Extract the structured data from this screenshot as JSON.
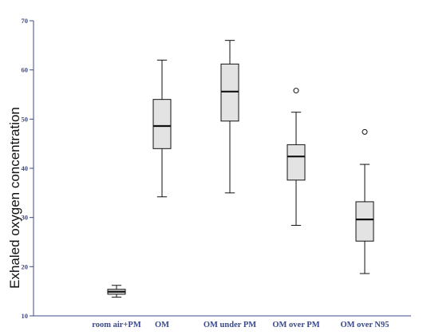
{
  "chart_data": {
    "type": "boxplot",
    "title": "",
    "xlabel": "",
    "ylabel": "Exhaled oxygen concentration",
    "ylim": [
      10,
      70
    ],
    "yticks": [
      10,
      20,
      30,
      40,
      50,
      60,
      70
    ],
    "categories": [
      "room air+PM",
      "OM",
      "OM under PM",
      "OM over PM",
      "OM over N95"
    ],
    "boxes": [
      {
        "min": 13.8,
        "q1": 14.4,
        "median": 14.9,
        "q3": 15.4,
        "max": 16.2,
        "outliers": []
      },
      {
        "min": 34.2,
        "q1": 44.0,
        "median": 48.6,
        "q3": 54.0,
        "max": 62.0,
        "outliers": []
      },
      {
        "min": 35.0,
        "q1": 49.6,
        "median": 55.6,
        "q3": 61.2,
        "max": 66.0,
        "outliers": []
      },
      {
        "min": 28.4,
        "q1": 37.6,
        "median": 42.4,
        "q3": 44.8,
        "max": 51.4,
        "outliers": [
          55.8
        ]
      },
      {
        "min": 18.6,
        "q1": 25.2,
        "median": 29.6,
        "q3": 33.2,
        "max": 40.8,
        "outliers": [
          47.4
        ]
      }
    ],
    "grid": false,
    "legend": "none",
    "colors": {
      "box_fill": "#e3e3e3",
      "stroke": "#111111",
      "axis": "#3b4a8c",
      "tick_text": "#3b4a8c"
    }
  }
}
